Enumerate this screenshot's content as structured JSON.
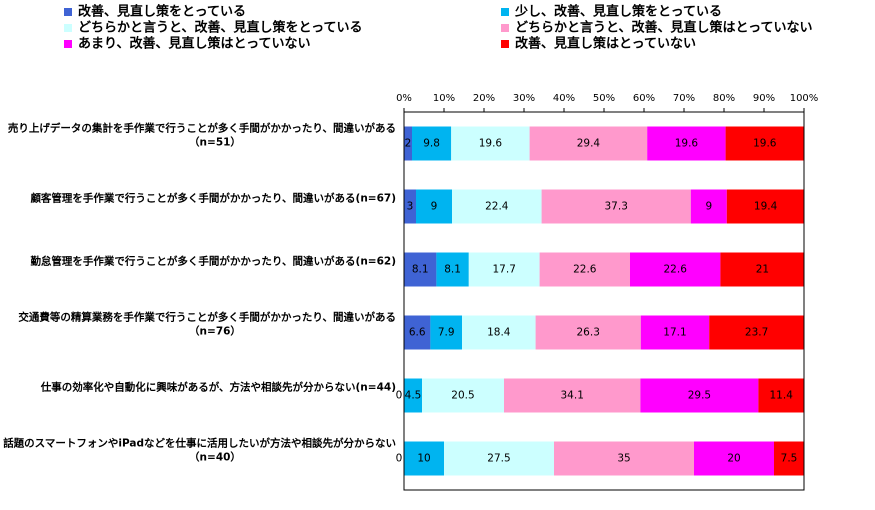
{
  "chart_data": {
    "type": "stacked-bar-horizontal",
    "categories": [
      [
        "売り上げデータの集計を手作業で行うことが多く手間がかかったり、間違いがある",
        "（n=51）"
      ],
      [
        "顧客管理を手作業で行うことが多く手間がかかったり、間違いがある(n=67)"
      ],
      [
        "勤怠管理を手作業で行うことが多く手間がかかったり、間違いがある(n=62)"
      ],
      [
        "交通費等の精算業務を手作業で行うことが多く手間がかかったり、間違いがある",
        "（n=76）"
      ],
      [
        "仕事の効率化や自動化に興味があるが、方法や相談先が分からない(n=44)"
      ],
      [
        "話題のスマートフォンやiPadなどを仕事に活用したいが方法や相談先が分からない",
        "（n=40）"
      ]
    ],
    "series": [
      {
        "name": "改善、見直し策をとっている",
        "color": "#3f63d4",
        "values": [
          2,
          3,
          8.1,
          6.6,
          0,
          0
        ]
      },
      {
        "name": "少し、改善、見直し策をとっている",
        "color": "#00b4f0",
        "values": [
          9.8,
          9,
          8.1,
          7.9,
          4.5,
          10
        ]
      },
      {
        "name": "どちらかと言うと、改善、見直し策をとっている",
        "color": "#ccffff",
        "values": [
          19.6,
          22.4,
          17.7,
          18.4,
          20.5,
          27.5
        ]
      },
      {
        "name": "どちらかと言うと、改善、見直し策はとっていない",
        "color": "#ff99cc",
        "values": [
          29.4,
          37.3,
          22.6,
          26.3,
          34.1,
          35
        ]
      },
      {
        "name": "あまり、改善、見直し策はとっていない",
        "color": "#ff00ff",
        "values": [
          19.6,
          9,
          22.6,
          17.1,
          29.5,
          20
        ]
      },
      {
        "name": "改善、見直し策はとっていない",
        "color": "#ff0000",
        "values": [
          19.6,
          19.4,
          21,
          23.7,
          11.4,
          7.5
        ]
      }
    ],
    "xlim": [
      0,
      100
    ],
    "xticks": [
      {
        "value": 0,
        "label": "0%"
      },
      {
        "value": 10,
        "label": "10%"
      },
      {
        "value": 20,
        "label": "20%"
      },
      {
        "value": 30,
        "label": "30%"
      },
      {
        "value": 40,
        "label": "40%"
      },
      {
        "value": 50,
        "label": "50%"
      },
      {
        "value": 60,
        "label": "60%"
      },
      {
        "value": 70,
        "label": "70%"
      },
      {
        "value": 80,
        "label": "80%"
      },
      {
        "value": 90,
        "label": "90%"
      },
      {
        "value": 100,
        "label": "100%"
      }
    ]
  }
}
